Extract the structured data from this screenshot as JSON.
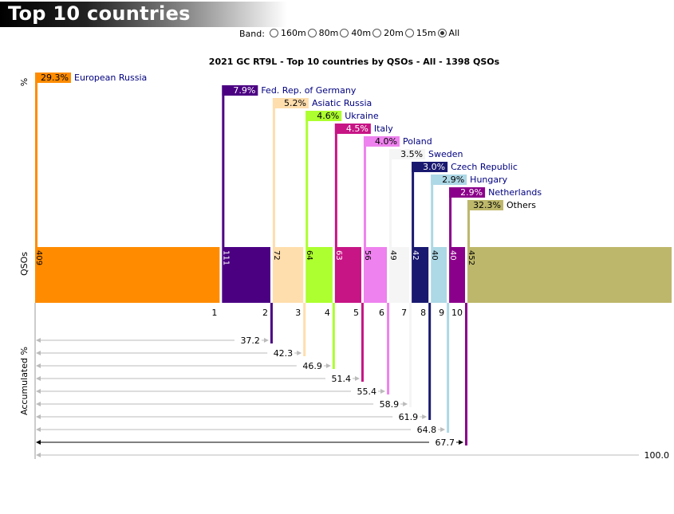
{
  "header": {
    "title": "Top 10 countries"
  },
  "bands": {
    "label": "Band:",
    "options": [
      {
        "label": "160m",
        "checked": false
      },
      {
        "label": "80m",
        "checked": false
      },
      {
        "label": "40m",
        "checked": false
      },
      {
        "label": "20m",
        "checked": false
      },
      {
        "label": "15m",
        "checked": false
      },
      {
        "label": "All",
        "checked": true
      }
    ]
  },
  "chart_data": {
    "type": "bar",
    "title": "2021 GC RT9L - Top 10 countries by QSOs - All - 1398 QSOs",
    "total_qsos": 1398,
    "percent_axis_label": "%",
    "qso_axis_label": "QSOs",
    "accum_axis_label": "Accumulated %",
    "categories": [
      {
        "rank": "1",
        "name": "European Russia",
        "qsos": 409,
        "pct": "29.3%",
        "accum": "",
        "color": "#ff8c00",
        "text_color": "#000000"
      },
      {
        "rank": "2",
        "name": "Fed. Rep. of Germany",
        "qsos": 111,
        "pct": "7.9%",
        "accum": "37.2",
        "color": "#4b0082",
        "text_color": "#ffffff"
      },
      {
        "rank": "3",
        "name": "Asiatic Russia",
        "qsos": 72,
        "pct": "5.2%",
        "accum": "42.3",
        "color": "#ffdead",
        "text_color": "#000000"
      },
      {
        "rank": "4",
        "name": "Ukraine",
        "qsos": 64,
        "pct": "4.6%",
        "accum": "46.9",
        "color": "#adff2f",
        "text_color": "#000000"
      },
      {
        "rank": "5",
        "name": "Italy",
        "qsos": 63,
        "pct": "4.5%",
        "accum": "51.4",
        "color": "#c71585",
        "text_color": "#ffffff"
      },
      {
        "rank": "6",
        "name": "Poland",
        "qsos": 56,
        "pct": "4.0%",
        "accum": "55.4",
        "color": "#ee82ee",
        "text_color": "#000000"
      },
      {
        "rank": "7",
        "name": "Sweden",
        "qsos": 49,
        "pct": "3.5%",
        "accum": "58.9",
        "color": "#f5f5f5",
        "text_color": "#000000"
      },
      {
        "rank": "8",
        "name": "Czech Republic",
        "qsos": 42,
        "pct": "3.0%",
        "accum": "61.9",
        "color": "#191970",
        "text_color": "#ffffff"
      },
      {
        "rank": "9",
        "name": "Hungary",
        "qsos": 40,
        "pct": "2.9%",
        "accum": "64.8",
        "color": "#add8e6",
        "text_color": "#000000"
      },
      {
        "rank": "10",
        "name": "Netherlands",
        "qsos": 40,
        "pct": "2.9%",
        "accum": "67.7",
        "color": "#8b008b",
        "text_color": "#ffffff"
      },
      {
        "rank": "",
        "name": "Others",
        "qsos": 452,
        "pct": "32.3%",
        "accum": "100.0",
        "color": "#bdb76b",
        "text_color": "#000000"
      }
    ]
  }
}
